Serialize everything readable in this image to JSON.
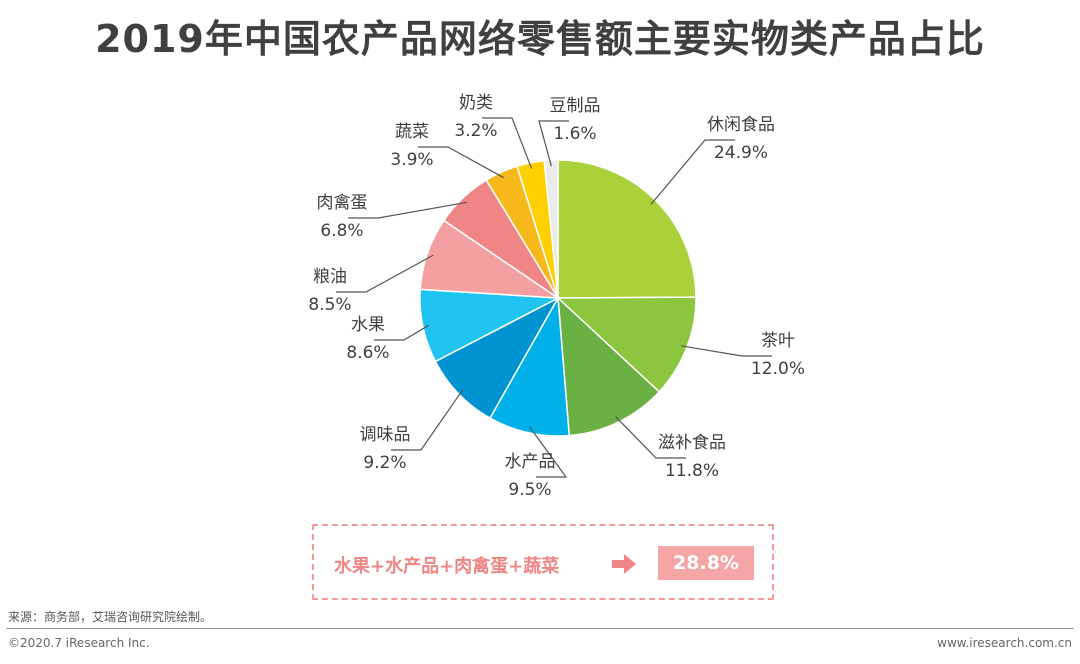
{
  "title": "2019年中国农产品网络零售额主要实物类产品占比",
  "chart_data": {
    "type": "pie",
    "title": "2019年中国农产品网络零售额主要实物类产品占比",
    "slices": [
      {
        "label": "休闲食品",
        "value": 24.9,
        "display": "24.9%",
        "color": "#a9d13a"
      },
      {
        "label": "茶叶",
        "value": 12.0,
        "display": "12.0%",
        "color": "#8cc63f"
      },
      {
        "label": "滋补食品",
        "value": 11.8,
        "display": "11.8%",
        "color": "#6bb043"
      },
      {
        "label": "水产品",
        "value": 9.5,
        "display": "9.5%",
        "color": "#00b0e8"
      },
      {
        "label": "调味品",
        "value": 9.2,
        "display": "9.2%",
        "color": "#0093d2"
      },
      {
        "label": "水果",
        "value": 8.6,
        "display": "8.6%",
        "color": "#20c4f0"
      },
      {
        "label": "粮油",
        "value": 8.5,
        "display": "8.5%",
        "color": "#f4a0a0"
      },
      {
        "label": "肉禽蛋",
        "value": 6.8,
        "display": "6.8%",
        "color": "#f08585"
      },
      {
        "label": "蔬菜",
        "value": 3.9,
        "display": "3.9%",
        "color": "#f7b81c"
      },
      {
        "label": "奶类",
        "value": 3.2,
        "display": "3.2%",
        "color": "#ffd000"
      },
      {
        "label": "豆制品",
        "value": 1.6,
        "display": "1.6%",
        "color": "#ebebeb"
      }
    ]
  },
  "summary": {
    "text": "水果+水产品+肉禽蛋+蔬菜",
    "value": "28.8%",
    "color": "#f08585"
  },
  "footer": {
    "source": "来源：商务部，艾瑞咨询研究院绘制。",
    "copyright": "©2020.7 iResearch Inc.",
    "website": "www.iresearch.com.cn"
  }
}
